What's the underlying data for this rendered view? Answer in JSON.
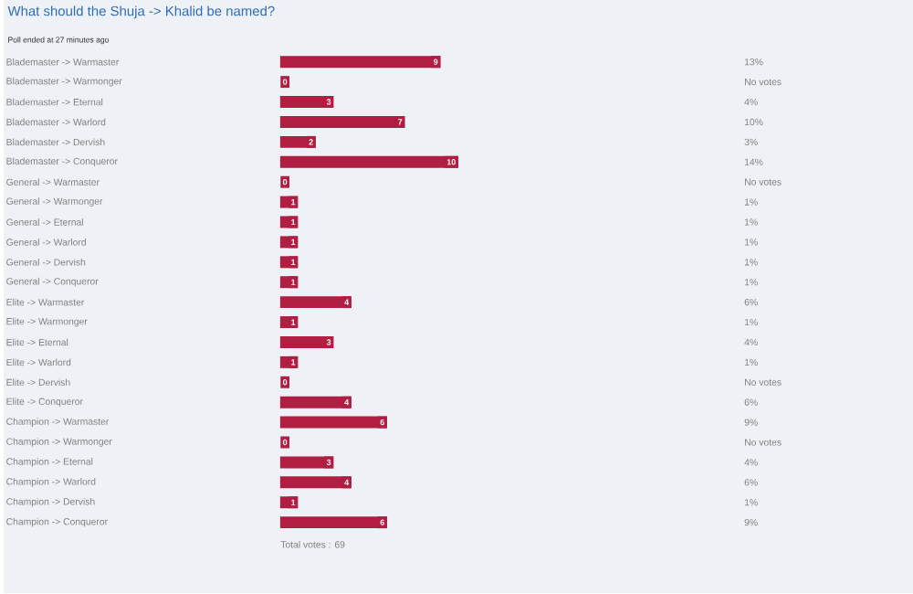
{
  "chart_data": {
    "type": "bar",
    "orientation": "horizontal",
    "title": "What should the Shuja -> Khalid be named?",
    "subtitle": "Poll ended at 27 minutes ago",
    "categories": [
      "Blademaster -> Warmaster",
      "Blademaster -> Warmonger",
      "Blademaster -> Eternal",
      "Blademaster -> Warlord",
      "Blademaster -> Dervish",
      "Blademaster -> Conqueror",
      "General -> Warmaster",
      "General -> Warmonger",
      "General -> Eternal",
      "General -> Warlord",
      "General -> Dervish",
      "General -> Conqueror",
      "Elite -> Warmaster",
      "Elite -> Warmonger",
      "Elite -> Eternal",
      "Elite -> Warlord",
      "Elite -> Dervish",
      "Elite -> Conqueror",
      "Champion -> Warmaster",
      "Champion -> Warmonger",
      "Champion -> Eternal",
      "Champion -> Warlord",
      "Champion -> Dervish",
      "Champion -> Conqueror"
    ],
    "values": [
      9,
      0,
      3,
      7,
      2,
      10,
      0,
      1,
      1,
      1,
      1,
      1,
      4,
      1,
      3,
      1,
      0,
      4,
      6,
      0,
      3,
      4,
      1,
      6
    ],
    "color": "#b01e42",
    "data_labels": true,
    "tick_labels": "y",
    "annotations": [
      "13%",
      "No votes",
      "4%",
      "10%",
      "3%",
      "14%",
      "No votes",
      "1%",
      "1%",
      "1%",
      "1%",
      "1%",
      "6%",
      "1%",
      "4%",
      "1%",
      "No votes",
      "6%",
      "9%",
      "No votes",
      "4%",
      "6%",
      "1%",
      "9%",
      "Total votes : 69"
    ]
  }
}
